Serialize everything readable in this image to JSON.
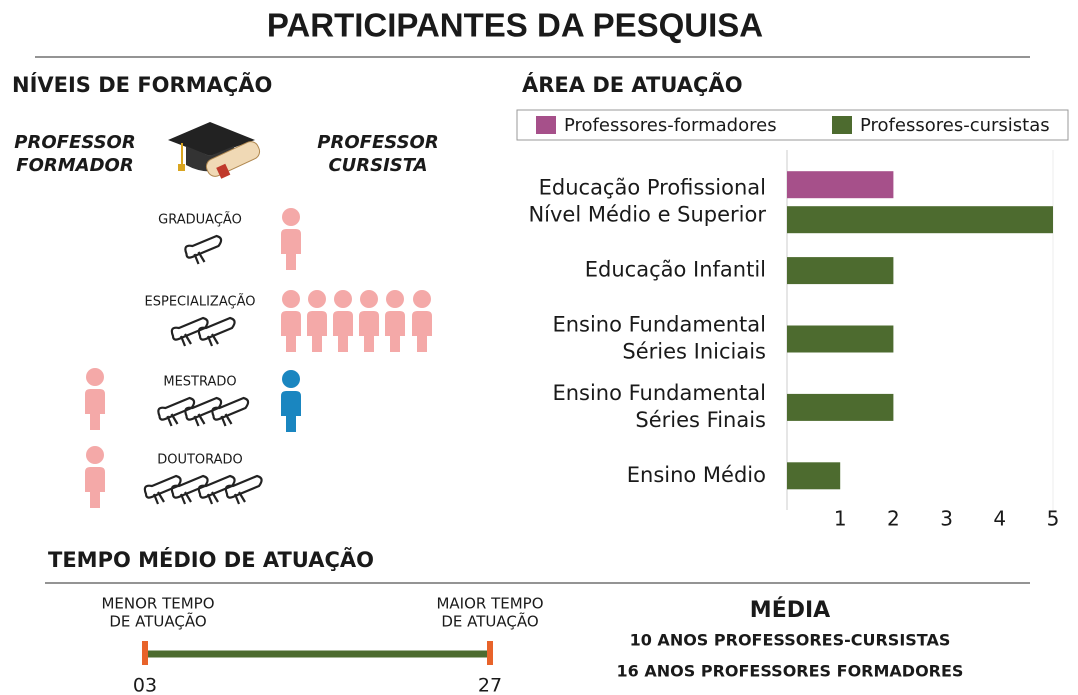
{
  "header": {
    "title": "PARTICIPANTES DA PESQUISA"
  },
  "niveis": {
    "title": "NÍVEIS DE FORMAÇÃO",
    "formador_label": [
      "PROFESSOR",
      "FORMADOR"
    ],
    "cursista_label": [
      "PROFESSOR",
      "CURSISTA"
    ],
    "levels": [
      {
        "name": "GRADUAÇÃO",
        "formadores": 0,
        "cursistas": 1,
        "cursista_color": "#f4a9a8"
      },
      {
        "name": "ESPECIALIZAÇÃO",
        "formadores": 0,
        "cursistas": 6,
        "cursista_color": "#f4a9a8"
      },
      {
        "name": "MESTRADO",
        "formadores": 1,
        "cursistas": 1,
        "cursista_color": "#1a86c0"
      },
      {
        "name": "DOUTORADO",
        "formadores": 1,
        "cursistas": 0,
        "cursista_color": "#f4a9a8"
      }
    ],
    "formador_color": "#f4a9a8"
  },
  "chart_data": {
    "type": "hbar",
    "title": "ÁREA DE ATUAÇÃO",
    "categories": [
      [
        "Educação Profissional",
        "Nível Médio e Superior"
      ],
      [
        "Educação Infantil"
      ],
      [
        "Ensino Fundamental",
        "Séries Iniciais"
      ],
      [
        "Ensino Fundamental",
        "Séries Finais"
      ],
      [
        "Ensino Médio"
      ]
    ],
    "series": [
      {
        "name": "Professores-formadores",
        "color": "#a6508a",
        "values": [
          2,
          null,
          null,
          null,
          null
        ]
      },
      {
        "name": "Professores-cursistas",
        "color": "#4d6b2f",
        "values": [
          5,
          2,
          2,
          2,
          1
        ]
      }
    ],
    "xlim": [
      0,
      5
    ],
    "xticks": [
      1,
      2,
      3,
      4,
      5
    ],
    "grid": false,
    "legend": "top"
  },
  "tempo": {
    "title": "TEMPO MÉDIO DE ATUAÇÃO",
    "min_label": [
      "MENOR TEMPO",
      "DE ATUAÇÃO"
    ],
    "max_label": [
      "MAIOR TEMPO",
      "DE ATUAÇÃO"
    ],
    "min": {
      "value": 3,
      "label": "03"
    },
    "max": 27,
    "media_title": "MÉDIA",
    "media_lines": [
      "10 ANOS PROFESSORES-CURSISTAS",
      "16 ANOS PROFESSORES FORMADORES"
    ]
  }
}
